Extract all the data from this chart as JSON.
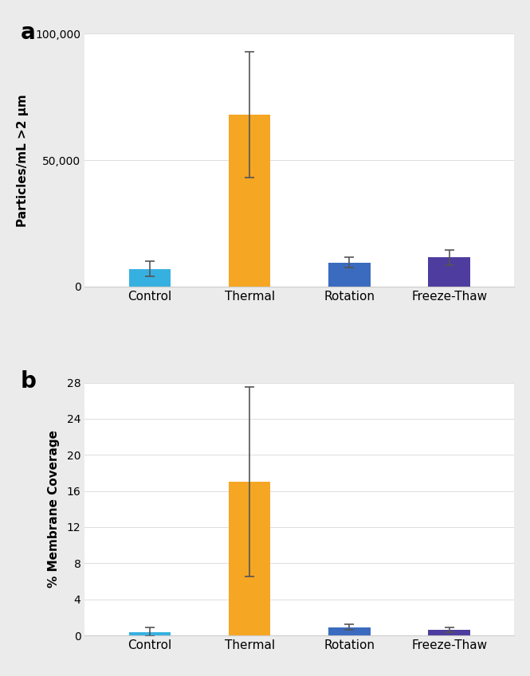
{
  "background_color": "#ebebeb",
  "plot_bg_color": "#ffffff",
  "panel_a": {
    "label": "a",
    "categories": [
      "Control",
      "Thermal",
      "Rotation",
      "Freeze-Thaw"
    ],
    "values": [
      7000,
      68000,
      9500,
      11500
    ],
    "errors": [
      3000,
      25000,
      2000,
      3000
    ],
    "colors": [
      "#36b0e0",
      "#f5a623",
      "#3a6bbf",
      "#4e3d9e"
    ],
    "ylabel": "Particles/mL >2 μm",
    "ylim": [
      0,
      100000
    ],
    "yticks": [
      0,
      50000,
      100000
    ],
    "yticklabels": [
      "0",
      "50,000",
      "100,000"
    ]
  },
  "panel_b": {
    "label": "b",
    "categories": [
      "Control",
      "Thermal",
      "Rotation",
      "Freeze-Thaw"
    ],
    "values": [
      0.4,
      17.0,
      0.9,
      0.65
    ],
    "errors": [
      0.45,
      10.5,
      0.3,
      0.25
    ],
    "colors": [
      "#36b0e0",
      "#f5a623",
      "#3a6bbf",
      "#4e3d9e"
    ],
    "ylabel": "% Membrane Coverage",
    "ylim": [
      0,
      28
    ],
    "yticks": [
      0,
      4,
      8,
      12,
      16,
      20,
      24,
      28
    ],
    "yticklabels": [
      "0",
      "4",
      "8",
      "12",
      "16",
      "20",
      "24",
      "28"
    ]
  },
  "bar_width": 0.42,
  "error_color": "#555555",
  "error_capsize": 4,
  "error_linewidth": 1.2,
  "label_fontsize": 20,
  "tick_fontsize": 10,
  "xlabel_fontsize": 11,
  "ylabel_fontsize": 11
}
